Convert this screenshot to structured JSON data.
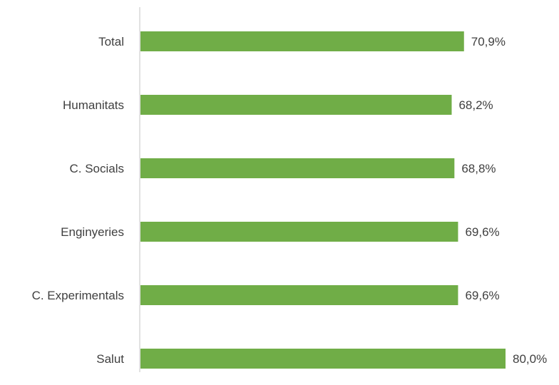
{
  "chart_data": {
    "type": "bar",
    "orientation": "horizontal",
    "categories": [
      "Total",
      "Humanitats",
      "C. Socials",
      "Enginyeries",
      "C. Experimentals",
      "Salut"
    ],
    "values": [
      70.9,
      68.2,
      68.8,
      69.6,
      69.6,
      80.0
    ],
    "value_labels": [
      "70,9%",
      "68,2%",
      "68,8%",
      "69,6%",
      "69,6%",
      "80,0%"
    ],
    "title": "",
    "xlabel": "",
    "ylabel": "",
    "xlim": [
      0,
      80
    ],
    "grid": false,
    "legend": "none",
    "bar_color": "#70AD47",
    "axis_color": "#D9D9D9",
    "text_color": "#404040"
  }
}
